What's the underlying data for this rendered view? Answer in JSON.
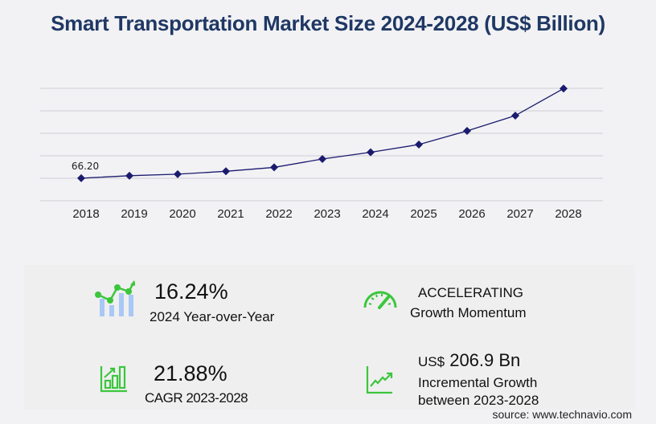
{
  "title": "Smart Transportation Market Size 2024-2028 (US$ Billion)",
  "chart_data": {
    "type": "line",
    "title": "Smart Transportation Market Size 2024-2028 (US$ Billion)",
    "xlabel": "",
    "ylabel": "",
    "categories": [
      "2018",
      "2019",
      "2020",
      "2021",
      "2022",
      "2023",
      "2024",
      "2025",
      "2026",
      "2027",
      "2028"
    ],
    "series": [
      {
        "name": "Market Size (US$ Billion)",
        "color": "#1a1a6e",
        "values": [
          66.2,
          73.5,
          78.0,
          86.5,
          98.0,
          122.5,
          142.4,
          165.0,
          205.0,
          250.0,
          329.4
        ]
      }
    ],
    "data_labels": [
      {
        "index": 0,
        "text": "66.20"
      }
    ],
    "ylim": [
      0,
      330
    ],
    "grid": true,
    "gridlines": 6,
    "legend": "none"
  },
  "stats": {
    "yoy": {
      "value": "16.24%",
      "label": "2024 Year-over-Year"
    },
    "momentum": {
      "line1": "ACCELERATING",
      "line2": "Growth Momentum"
    },
    "cagr": {
      "value": "21.88%",
      "label": "CAGR 2023-2028"
    },
    "incremental": {
      "prefix": "US$",
      "value": "206.9 Bn",
      "line1": "Incremental Growth",
      "line2": "between 2023-2028"
    }
  },
  "source": "source: www.technavio.com",
  "colors": {
    "accent_green": "#3cc63c",
    "bar_blue": "#a9c8f5",
    "title": "#1f3864",
    "line": "#1a1a6e"
  }
}
